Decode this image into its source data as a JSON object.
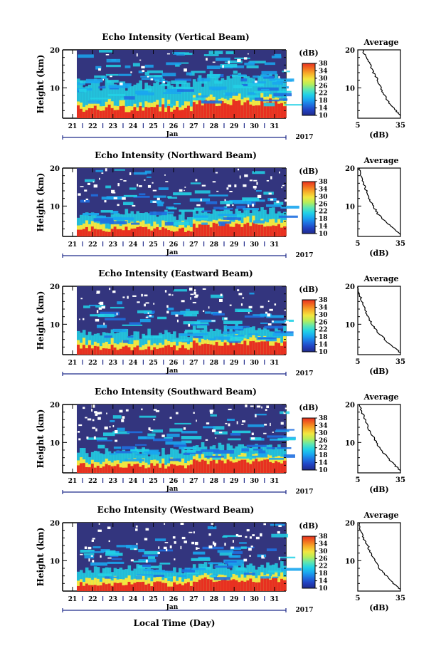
{
  "figure": {
    "bottom_xlabel": "Local Time (Day)",
    "colorbar_unit": "(dB)",
    "colorbar_ticks": [
      "10",
      "14",
      "18",
      "22",
      "26",
      "30",
      "34",
      "38"
    ],
    "colormap": [
      "#1f2a8a",
      "#2140c0",
      "#1f6fe0",
      "#1aa6f0",
      "#22d2e6",
      "#5fe6b0",
      "#b6ee5a",
      "#f2e640",
      "#f7b02a",
      "#f27020",
      "#e83020"
    ],
    "background_color": "#33357e",
    "avg_title": "Average",
    "avg_xlabel": "(dB)"
  },
  "chart_data": [
    {
      "type": "heatmap",
      "title": "Echo Intensity (Vertical Beam)",
      "ylabel": "Height (km)",
      "ylim": [
        2,
        20
      ],
      "yticks": [
        "10",
        "20"
      ],
      "xlabel": "",
      "x_days": [
        "21",
        "22",
        "23",
        "24",
        "25",
        "26",
        "27",
        "28",
        "29",
        "30",
        "31"
      ],
      "month_label": "Jan",
      "year_label": "2017",
      "color_range_db": [
        10,
        38
      ],
      "average_profile": {
        "xlim": [
          5,
          35
        ],
        "xticks": [
          "5",
          "35"
        ],
        "yticks": [
          "10",
          "20"
        ],
        "heights": [
          20,
          18,
          16,
          14,
          12,
          10,
          8,
          6,
          4,
          2.5
        ],
        "db": [
          8,
          11,
          14,
          16,
          19,
          21,
          24,
          27,
          32,
          35
        ]
      }
    },
    {
      "type": "heatmap",
      "title": "Echo Intensity (Northward Beam)",
      "ylabel": "Height (km)",
      "ylim": [
        2,
        20
      ],
      "yticks": [
        "10",
        "20"
      ],
      "xlabel": "",
      "x_days": [
        "21",
        "22",
        "23",
        "24",
        "25",
        "26",
        "27",
        "28",
        "29",
        "30",
        "31"
      ],
      "month_label": "Jan",
      "year_label": "2017",
      "color_range_db": [
        10,
        38
      ],
      "average_profile": {
        "xlim": [
          5,
          35
        ],
        "xticks": [
          "5",
          "35"
        ],
        "yticks": [
          "10",
          "20"
        ],
        "heights": [
          20,
          18,
          16,
          14,
          12,
          10,
          8,
          6,
          4,
          2.5
        ],
        "db": [
          6,
          7,
          9,
          11,
          13,
          16,
          19,
          24,
          30,
          35
        ]
      }
    },
    {
      "type": "heatmap",
      "title": "Echo Intensity (Eastward Beam)",
      "ylabel": "Height (km)",
      "ylim": [
        2,
        20
      ],
      "yticks": [
        "10",
        "20"
      ],
      "xlabel": "",
      "x_days": [
        "21",
        "22",
        "23",
        "24",
        "25",
        "26",
        "27",
        "28",
        "29",
        "30",
        "31"
      ],
      "month_label": "Jan",
      "year_label": "2017",
      "color_range_db": [
        10,
        38
      ],
      "average_profile": {
        "xlim": [
          5,
          35
        ],
        "xticks": [
          "5",
          "35"
        ],
        "yticks": [
          "10",
          "20"
        ],
        "heights": [
          20,
          18,
          16,
          14,
          12,
          10,
          8,
          6,
          4,
          2.5
        ],
        "db": [
          5,
          6,
          8,
          10,
          12,
          15,
          19,
          24,
          30,
          35
        ]
      }
    },
    {
      "type": "heatmap",
      "title": "Echo Intensity (Southward Beam)",
      "ylabel": "Height (km)",
      "ylim": [
        2,
        20
      ],
      "yticks": [
        "10",
        "20"
      ],
      "xlabel": "",
      "x_days": [
        "21",
        "22",
        "23",
        "24",
        "25",
        "26",
        "27",
        "28",
        "29",
        "30",
        "31"
      ],
      "month_label": "Jan",
      "year_label": "2017",
      "color_range_db": [
        10,
        38
      ],
      "average_profile": {
        "xlim": [
          5,
          35
        ],
        "xticks": [
          "5",
          "35"
        ],
        "yticks": [
          "10",
          "20"
        ],
        "heights": [
          20,
          18,
          16,
          14,
          12,
          10,
          8,
          6,
          4,
          2.5
        ],
        "db": [
          6,
          8,
          10,
          12,
          15,
          18,
          21,
          26,
          31,
          35
        ]
      }
    },
    {
      "type": "heatmap",
      "title": "Echo Intensity (Westward Beam)",
      "ylabel": "Height (km)",
      "ylim": [
        2,
        20
      ],
      "yticks": [
        "10",
        "20"
      ],
      "xlabel": "",
      "x_days": [
        "21",
        "22",
        "23",
        "24",
        "25",
        "26",
        "27",
        "28",
        "29",
        "30",
        "31"
      ],
      "month_label": "Jan",
      "year_label": "2017",
      "color_range_db": [
        10,
        38
      ],
      "average_profile": {
        "xlim": [
          5,
          35
        ],
        "xticks": [
          "5",
          "35"
        ],
        "yticks": [
          "10",
          "20"
        ],
        "heights": [
          20,
          18,
          16,
          14,
          12,
          10,
          8,
          6,
          4,
          2.5
        ],
        "db": [
          6,
          7,
          9,
          12,
          14,
          17,
          20,
          25,
          30,
          35
        ]
      }
    }
  ]
}
